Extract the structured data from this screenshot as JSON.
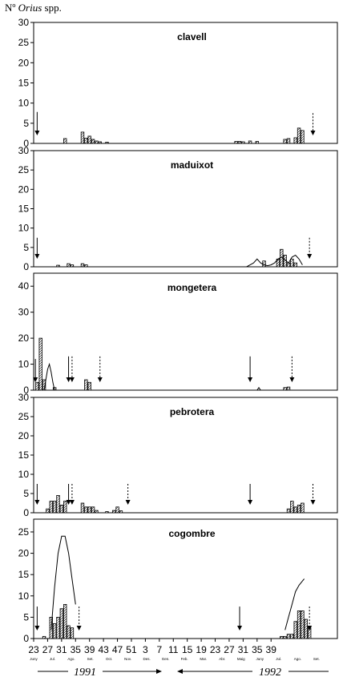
{
  "header": {
    "ylabel_prefix": "Nº ",
    "ylabel_italic": "Orius",
    "ylabel_suffix": " spp."
  },
  "footer": {
    "year1": "1991",
    "year2": "1992"
  },
  "x_ticks": [
    "23",
    "27",
    "31",
    "35",
    "39",
    "43",
    "47",
    "51",
    "3",
    "7",
    "11",
    "15",
    "19",
    "23",
    "27",
    "31",
    "35",
    "39"
  ],
  "month_labels": [
    "Juny",
    "Jul.",
    "Ago.",
    "Set.",
    "Oct.",
    "Nov.",
    "Des.",
    "Gen.",
    "Feb.",
    "Mar.",
    "Abr.",
    "Maig",
    "Juny",
    "Jul.",
    "Ago.",
    "Set."
  ],
  "chart_data": [
    {
      "type": "bar",
      "title": "clavell",
      "ylim": [
        0,
        30
      ],
      "yticks": [
        0,
        5,
        10,
        15,
        20,
        25,
        30
      ],
      "bars": [
        [
          32,
          1.2
        ],
        [
          37,
          2.8
        ],
        [
          38,
          1.3
        ],
        [
          39,
          1.8
        ],
        [
          40,
          1.0
        ],
        [
          41,
          0.6
        ],
        [
          42,
          0.4
        ],
        [
          44,
          0.3
        ],
        [
          81,
          0.5
        ],
        [
          82,
          0.5
        ],
        [
          83,
          0.4
        ],
        [
          85,
          0.6
        ],
        [
          87,
          0.5
        ],
        [
          95,
          1.0
        ],
        [
          96,
          1.2
        ],
        [
          98,
          1.4
        ],
        [
          99,
          3.8
        ],
        [
          100,
          3.2
        ]
      ],
      "curve": [],
      "arrows": [
        {
          "week": 24,
          "style": "solid",
          "top": 7.8
        },
        {
          "week": 103,
          "style": "dashed",
          "top": 7.5
        }
      ]
    },
    {
      "type": "bar",
      "title": "maduixot",
      "ylim": [
        0,
        30
      ],
      "yticks": [
        0,
        5,
        10,
        15,
        20,
        25,
        30
      ],
      "bars": [
        [
          30,
          0.4
        ],
        [
          33,
          0.8
        ],
        [
          34,
          0.5
        ],
        [
          37,
          0.8
        ],
        [
          38,
          0.5
        ],
        [
          89,
          1.5
        ],
        [
          93,
          2.0
        ],
        [
          94,
          4.5
        ],
        [
          95,
          3.0
        ],
        [
          96,
          1.0
        ],
        [
          97,
          2.0
        ],
        [
          98,
          1.0
        ]
      ],
      "curve": [
        [
          84,
          0
        ],
        [
          85,
          0.5
        ],
        [
          86,
          1.0
        ],
        [
          87,
          2.0
        ],
        [
          88,
          1.0
        ],
        [
          89,
          0.5
        ],
        [
          90,
          0.3
        ],
        [
          91,
          0.5
        ],
        [
          92,
          1.0
        ],
        [
          93,
          2.0
        ],
        [
          94,
          2.5
        ],
        [
          95,
          1.8
        ],
        [
          96,
          1.0
        ],
        [
          97,
          2.5
        ],
        [
          98,
          3.0
        ],
        [
          99,
          2.0
        ],
        [
          100,
          0.5
        ]
      ],
      "arrows": [
        {
          "week": 24,
          "style": "solid",
          "top": 7.5
        },
        {
          "week": 102,
          "style": "dashed",
          "top": 7.5
        }
      ]
    },
    {
      "type": "bar",
      "title": "mongetera",
      "ylim": [
        0,
        45
      ],
      "yticks": [
        0,
        10,
        20,
        30,
        40
      ],
      "bars": [
        [
          24,
          3.0
        ],
        [
          25,
          20.0
        ],
        [
          26,
          4.0
        ],
        [
          29,
          1.0
        ],
        [
          38,
          4.0
        ],
        [
          39,
          3.0
        ],
        [
          95,
          1.0
        ],
        [
          96,
          1.2
        ]
      ],
      "curve": [
        [
          26,
          0
        ],
        [
          26.5,
          4
        ],
        [
          27,
          8
        ],
        [
          27.5,
          10
        ],
        [
          28,
          7
        ],
        [
          28.5,
          3
        ],
        [
          29,
          0
        ],
        [
          87,
          0
        ],
        [
          87.5,
          1.0
        ],
        [
          88,
          0
        ]
      ],
      "arrows": [
        {
          "week": 23.5,
          "style": "solid",
          "top": 12.0
        },
        {
          "week": 33,
          "style": "solid",
          "top": 13.0
        },
        {
          "week": 34,
          "style": "dashed",
          "top": 13.0
        },
        {
          "week": 42,
          "style": "dashed",
          "top": 13.0
        },
        {
          "week": 85,
          "style": "solid",
          "top": 13.0
        },
        {
          "week": 97,
          "style": "dashed",
          "top": 13.0
        }
      ]
    },
    {
      "type": "bar",
      "title": "pebrotera",
      "ylim": [
        0,
        30
      ],
      "yticks": [
        0,
        5,
        10,
        15,
        20,
        25,
        30
      ],
      "bars": [
        [
          27,
          1.0
        ],
        [
          28,
          3.0
        ],
        [
          29,
          3.0
        ],
        [
          30,
          4.5
        ],
        [
          31,
          2.0
        ],
        [
          32,
          3.0
        ],
        [
          37,
          2.5
        ],
        [
          38,
          1.5
        ],
        [
          39,
          1.5
        ],
        [
          40,
          1.5
        ],
        [
          41,
          0.6
        ],
        [
          44,
          0.3
        ],
        [
          46,
          0.6
        ],
        [
          47,
          1.5
        ],
        [
          48,
          0.5
        ],
        [
          96,
          1.0
        ],
        [
          97,
          3.0
        ],
        [
          98,
          1.5
        ],
        [
          99,
          2.0
        ],
        [
          100,
          2.5
        ]
      ],
      "curve": [],
      "arrows": [
        {
          "week": 24,
          "style": "solid",
          "top": 7.5
        },
        {
          "week": 33,
          "style": "solid",
          "top": 7.5
        },
        {
          "week": 34,
          "style": "dashed",
          "top": 7.5
        },
        {
          "week": 50,
          "style": "dashed",
          "top": 7.5
        },
        {
          "week": 85,
          "style": "solid",
          "top": 7.5
        },
        {
          "week": 103,
          "style": "dashed",
          "top": 7.5
        }
      ]
    },
    {
      "type": "bar",
      "title": "cogombre",
      "ylim": [
        0,
        28
      ],
      "yticks": [
        0,
        5,
        10,
        15,
        20,
        25
      ],
      "bars": [
        [
          26,
          0.5
        ],
        [
          28,
          5.0
        ],
        [
          29,
          3.5
        ],
        [
          30,
          5.0
        ],
        [
          31,
          7.0
        ],
        [
          32,
          8.0
        ],
        [
          33,
          3.0
        ],
        [
          34,
          2.5
        ],
        [
          94,
          0.5
        ],
        [
          95,
          0.5
        ],
        [
          96,
          1.0
        ],
        [
          97,
          1.0
        ],
        [
          98,
          4.0
        ],
        [
          99,
          6.5
        ],
        [
          100,
          6.5
        ],
        [
          101,
          4.5
        ],
        [
          102,
          2.5
        ]
      ],
      "curve": [
        [
          28,
          2
        ],
        [
          29,
          12
        ],
        [
          30,
          20
        ],
        [
          31,
          24
        ],
        [
          32,
          24
        ],
        [
          33,
          20
        ],
        [
          34,
          14
        ],
        [
          35,
          8
        ],
        [
          95,
          2
        ],
        [
          96,
          5
        ],
        [
          97,
          8
        ],
        [
          98,
          11
        ],
        [
          99,
          12.5
        ],
        [
          100,
          13.5
        ],
        [
          100.5,
          14
        ]
      ],
      "arrows": [
        {
          "week": 24,
          "style": "solid",
          "top": 7.5
        },
        {
          "week": 36,
          "style": "dashed",
          "top": 7.5
        },
        {
          "week": 82,
          "style": "solid",
          "top": 7.5
        },
        {
          "week": 102,
          "style": "dashed",
          "top": 7.5
        }
      ]
    }
  ]
}
